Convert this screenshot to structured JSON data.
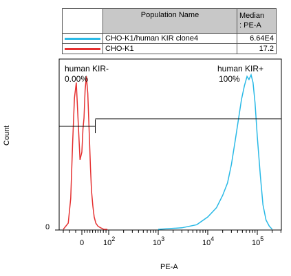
{
  "legend": {
    "header_name": "Population Name",
    "header_median_1": "Median",
    "header_median_2": ": PE-A",
    "rows": [
      {
        "name": "CHO-K1/human KIR clone4",
        "median": "6.64E4",
        "color": "#29b9e6"
      },
      {
        "name": "CHO-K1",
        "median": "17.2",
        "color": "#e53030"
      }
    ]
  },
  "chart_data": {
    "type": "area",
    "xlabel": "PE-A",
    "ylabel": "Count",
    "y_ticks": [
      "0"
    ],
    "x_ticks": [
      {
        "value": 0,
        "label": "0",
        "exp": ""
      },
      {
        "value": 100,
        "label": "10",
        "exp": "2"
      },
      {
        "value": 1000,
        "label": "10",
        "exp": "3"
      },
      {
        "value": 10000,
        "label": "10",
        "exp": "4"
      },
      {
        "value": 100000,
        "label": "10",
        "exp": "5"
      }
    ],
    "x_scale": "biexponential",
    "grid": false,
    "gates": [
      {
        "name": "human KIR-",
        "percent": "0.00%"
      },
      {
        "name": "human KIR+",
        "percent": "100%"
      }
    ],
    "series": [
      {
        "name": "CHO-K1/human KIR clone4",
        "color": "#29b9e6",
        "median": 66400,
        "x": [
          1000,
          3000,
          6000,
          10000,
          15000,
          20000,
          25000,
          30000,
          36000,
          42000,
          48000,
          55000,
          62000,
          68000,
          75000,
          82000,
          90000,
          100000,
          115000,
          130000,
          150000,
          175000,
          200000
        ],
        "y": [
          0,
          1,
          3,
          8,
          14,
          22,
          30,
          42,
          58,
          72,
          84,
          93,
          99,
          97,
          100,
          95,
          82,
          60,
          35,
          16,
          6,
          2,
          0
        ]
      },
      {
        "name": "CHO-K1",
        "color": "#e53030",
        "median": 17.2,
        "x": [
          -30,
          -22,
          -18,
          -15,
          -12,
          -9,
          -6,
          -3,
          0,
          4,
          8,
          12,
          17,
          22,
          28,
          32,
          36,
          41,
          46,
          52,
          60,
          70,
          82,
          95
        ],
        "y": [
          0,
          4,
          20,
          55,
          85,
          95,
          70,
          45,
          50,
          65,
          72,
          90,
          99,
          88,
          60,
          40,
          25,
          15,
          8,
          4,
          2,
          1,
          0,
          0
        ]
      }
    ]
  }
}
